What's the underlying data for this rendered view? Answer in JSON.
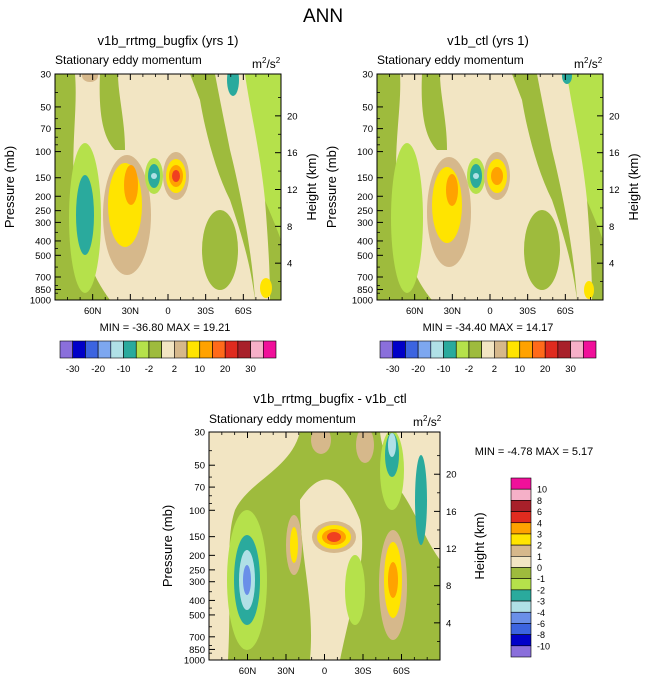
{
  "figure_title": "ANN",
  "chart_data": [
    {
      "type": "contour",
      "title": "v1b_rrtmg_bugfix (yrs 1)",
      "subtitle": "Stationary eddy momentum",
      "units": "m²/s²",
      "units_base": "m",
      "units_sup": "2",
      "units_mid": "/s",
      "units_sup2": "2",
      "xlabel": "",
      "ylabel": "Pressure (mb)",
      "ylabel_right": "Height (km)",
      "x_ticks": [
        "60N",
        "30N",
        "0",
        "30S",
        "60S"
      ],
      "x_tick_values": [
        60,
        30,
        0,
        -30,
        -60
      ],
      "xlim": [
        90,
        -90
      ],
      "y_ticks": [
        "30",
        "50",
        "70",
        "100",
        "150",
        "200",
        "250",
        "300",
        "400",
        "500",
        "700",
        "850",
        "1000"
      ],
      "y_tick_values": [
        30,
        50,
        70,
        100,
        150,
        200,
        250,
        300,
        400,
        500,
        700,
        850,
        1000
      ],
      "ylim": [
        1000,
        30
      ],
      "height_ticks": [
        "4",
        "8",
        "12",
        "16",
        "20"
      ],
      "height_tick_values": [
        4,
        8,
        12,
        16,
        20
      ],
      "stats": "MIN = -36.80  MAX =  19.21",
      "contour_levels": [
        -30,
        -25,
        -20,
        -15,
        -10,
        -5,
        -2,
        -1,
        1,
        2,
        5,
        10,
        15,
        20,
        25,
        30
      ],
      "colorbar_labels": [
        "-30",
        "-20",
        "-10",
        "-2",
        "2",
        "10",
        "20",
        "30"
      ],
      "features": [
        {
          "x": 21,
          "p": 155,
          "value": 19.21
        },
        {
          "x": 45,
          "p": 155,
          "value": -25
        },
        {
          "x": 37,
          "p": 240,
          "value": 10
        },
        {
          "x": 72,
          "p": 270,
          "value": -12
        },
        {
          "x": -25,
          "p": 260,
          "value": 2
        },
        {
          "x": -47,
          "p": 40,
          "value": -10
        }
      ]
    },
    {
      "type": "contour",
      "title": "v1b_ctl (yrs 1)",
      "subtitle": "Stationary eddy momentum",
      "units": "m²/s²",
      "units_base": "m",
      "units_sup": "2",
      "units_mid": "/s",
      "units_sup2": "2",
      "ylabel": "Pressure (mb)",
      "ylabel_right": "Height (km)",
      "x_ticks": [
        "60N",
        "30N",
        "0",
        "30S",
        "60S"
      ],
      "x_tick_values": [
        60,
        30,
        0,
        -30,
        -60
      ],
      "xlim": [
        90,
        -90
      ],
      "y_ticks": [
        "30",
        "50",
        "70",
        "100",
        "150",
        "200",
        "250",
        "300",
        "400",
        "500",
        "700",
        "850",
        "1000"
      ],
      "y_tick_values": [
        30,
        50,
        70,
        100,
        150,
        200,
        250,
        300,
        400,
        500,
        700,
        850,
        1000
      ],
      "ylim": [
        1000,
        30
      ],
      "height_ticks": [
        "4",
        "8",
        "12",
        "16",
        "20"
      ],
      "height_tick_values": [
        4,
        8,
        12,
        16,
        20
      ],
      "stats": "MIN = -34.40  MAX =  14.17",
      "contour_levels": [
        -30,
        -25,
        -20,
        -15,
        -10,
        -5,
        -2,
        -1,
        1,
        2,
        5,
        10,
        15,
        20,
        25,
        30
      ],
      "colorbar_labels": [
        "-30",
        "-20",
        "-10",
        "-2",
        "2",
        "10",
        "20",
        "30"
      ],
      "features": [
        {
          "x": 16,
          "p": 160,
          "value": 14.17
        },
        {
          "x": 45,
          "p": 155,
          "value": -25
        },
        {
          "x": 37,
          "p": 230,
          "value": 10
        },
        {
          "x": 72,
          "p": 270,
          "value": -10
        },
        {
          "x": -25,
          "p": 260,
          "value": 2
        }
      ]
    },
    {
      "type": "contour",
      "title": "v1b_rrtmg_bugfix - v1b_ctl",
      "subtitle": "Stationary eddy momentum",
      "units": "m²/s²",
      "units_base": "m",
      "units_sup": "2",
      "units_mid": "/s",
      "units_sup2": "2",
      "ylabel": "Pressure (mb)",
      "ylabel_right": "Height (km)",
      "x_ticks": [
        "60N",
        "30N",
        "0",
        "30S",
        "60S"
      ],
      "x_tick_values": [
        60,
        30,
        0,
        -30,
        -60
      ],
      "xlim": [
        90,
        -90
      ],
      "y_ticks": [
        "30",
        "50",
        "70",
        "100",
        "150",
        "200",
        "250",
        "300",
        "400",
        "500",
        "700",
        "850",
        "1000"
      ],
      "y_tick_values": [
        30,
        50,
        70,
        100,
        150,
        200,
        250,
        300,
        400,
        500,
        700,
        850,
        1000
      ],
      "ylim": [
        1000,
        30
      ],
      "height_ticks": [
        "4",
        "8",
        "12",
        "16",
        "20"
      ],
      "height_tick_values": [
        4,
        8,
        12,
        16,
        20
      ],
      "stats": "MIN =  -4.78  MAX =   5.17",
      "contour_levels": [
        -10,
        -8,
        -6,
        -4,
        -3,
        -2,
        -1,
        0,
        1,
        2,
        3,
        4,
        6,
        8,
        10
      ],
      "colorbar_labels": [
        "10",
        "8",
        "6",
        "4",
        "3",
        "2",
        "1",
        "0",
        "-1",
        "-2",
        "-3",
        "-4",
        "-6",
        "-8",
        "-10"
      ],
      "features": [
        {
          "x": 5,
          "p": 150,
          "value": 5.17
        },
        {
          "x": 60,
          "p": 290,
          "value": -4.78
        },
        {
          "x": 27,
          "p": 190,
          "value": 2
        },
        {
          "x": -55,
          "p": 290,
          "value": 3
        },
        {
          "x": -70,
          "p": 80,
          "value": -3
        },
        {
          "x": -20,
          "p": 280,
          "value": -1
        }
      ]
    }
  ]
}
